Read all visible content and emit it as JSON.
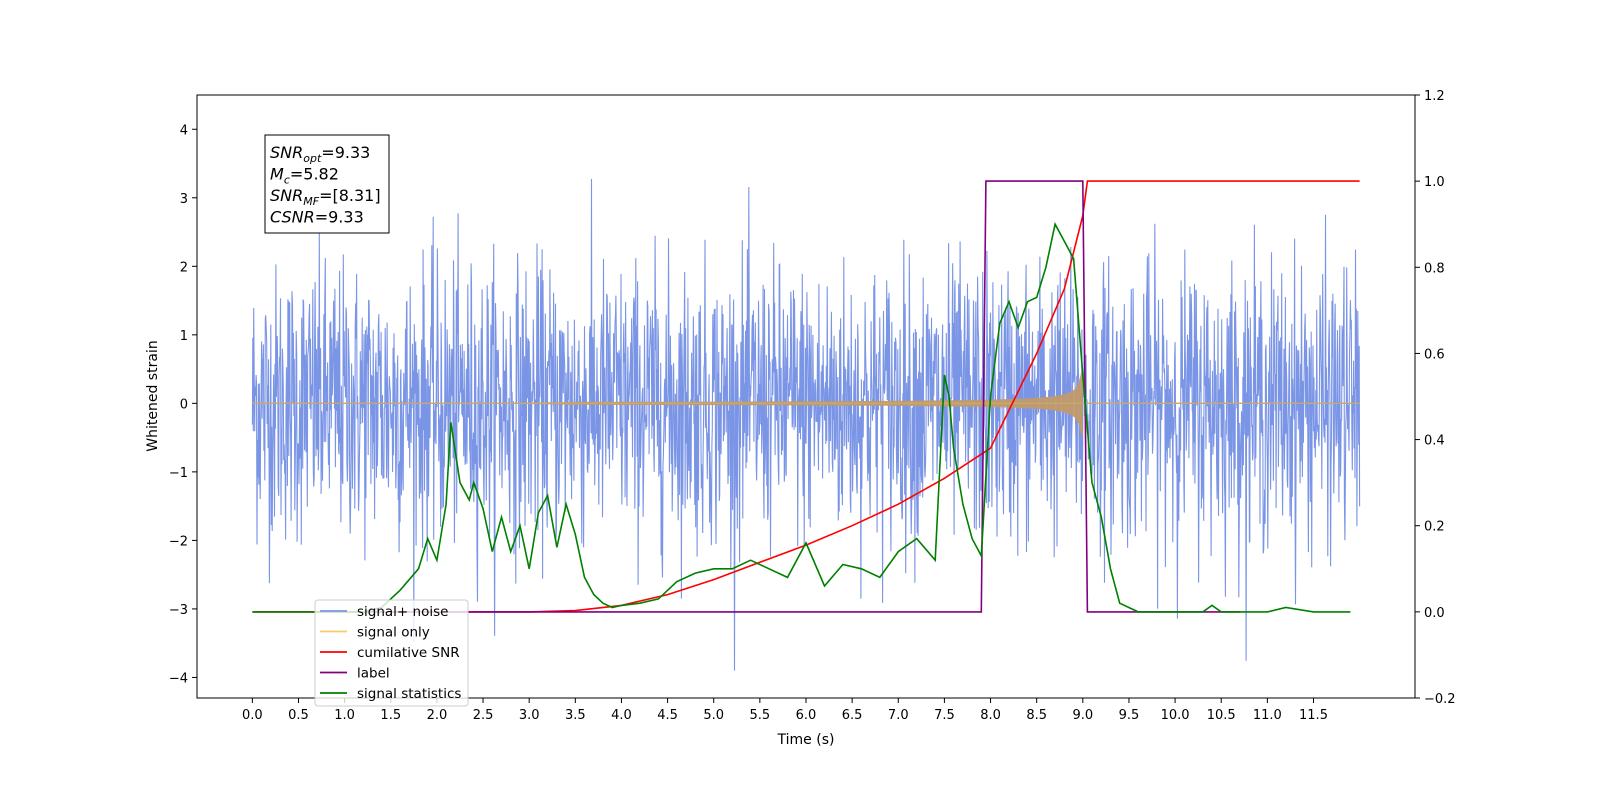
{
  "chart_data": {
    "type": "line",
    "title": "",
    "xlabel": "Time (s)",
    "ylabel": "Whitened strain",
    "y2label": "",
    "xlim": [
      -0.6,
      12.6
    ],
    "ylim": [
      -4.3,
      4.5
    ],
    "y2lim": [
      -0.2,
      1.2
    ],
    "x_ticks": [
      "0.0",
      "0.5",
      "1.0",
      "1.5",
      "2.0",
      "2.5",
      "3.0",
      "3.5",
      "4.0",
      "4.5",
      "5.0",
      "5.5",
      "6.0",
      "6.5",
      "7.0",
      "7.5",
      "8.0",
      "8.5",
      "9.0",
      "9.5",
      "10.0",
      "10.5",
      "11.0",
      "11.5"
    ],
    "y_ticks": [
      "4",
      "3",
      "2",
      "1",
      "0",
      "−1",
      "−2",
      "−3",
      "−4"
    ],
    "y2_ticks": [
      "1.2",
      "1.0",
      "0.8",
      "0.6",
      "0.4",
      "0.2",
      "0.0",
      "−0.2"
    ],
    "grid": false,
    "legend_position": "lower-left",
    "annotation_box": {
      "lines": [
        {
          "sym": "SNR",
          "sub": "opt",
          "value": "=9.33"
        },
        {
          "sym": "M",
          "sub": "c",
          "value": "=5.82"
        },
        {
          "sym": "SNR",
          "sub": "MF",
          "value": "=[8.31]"
        },
        {
          "sym": "CSNR",
          "sub": "",
          "value": "=9.33"
        }
      ]
    },
    "series": [
      {
        "name": "signal+ noise",
        "color": "#7b95e6",
        "axis": "left",
        "style": "noise",
        "x_range": [
          0.0,
          12.0
        ],
        "mean": 0,
        "std": 1.0
      },
      {
        "name": "signal only",
        "color": "#ffc66a",
        "axis": "left",
        "style": "chirp",
        "x_range": [
          0.0,
          9.0
        ],
        "peak_amplitude": 0.6
      },
      {
        "name": "cumilative SNR",
        "color": "#ff0000",
        "axis": "right",
        "x": [
          0.0,
          3.0,
          3.5,
          4.0,
          4.5,
          5.0,
          5.5,
          6.0,
          6.5,
          7.0,
          7.5,
          8.0,
          8.5,
          8.8,
          9.0,
          9.05,
          12.0
        ],
        "values": [
          0.0,
          0.0,
          0.003,
          0.015,
          0.04,
          0.075,
          0.115,
          0.155,
          0.2,
          0.25,
          0.31,
          0.38,
          0.6,
          0.75,
          0.92,
          1.0,
          1.0
        ]
      },
      {
        "name": "label",
        "color": "#800080",
        "axis": "right",
        "x": [
          0.7,
          7.9,
          7.95,
          9.0,
          9.05,
          10.7
        ],
        "values": [
          0.0,
          0.0,
          1.0,
          1.0,
          0.0,
          0.0
        ]
      },
      {
        "name": "signal statistics",
        "color": "#008000",
        "axis": "right",
        "x": [
          0.0,
          0.3,
          0.6,
          0.9,
          1.0,
          1.2,
          1.4,
          1.6,
          1.8,
          1.9,
          2.0,
          2.1,
          2.15,
          2.25,
          2.35,
          2.4,
          2.5,
          2.6,
          2.7,
          2.8,
          2.9,
          3.0,
          3.1,
          3.2,
          3.3,
          3.4,
          3.5,
          3.6,
          3.7,
          3.8,
          3.9,
          4.0,
          4.2,
          4.4,
          4.6,
          4.8,
          5.0,
          5.2,
          5.4,
          5.6,
          5.8,
          6.0,
          6.2,
          6.4,
          6.6,
          6.8,
          7.0,
          7.2,
          7.4,
          7.5,
          7.55,
          7.6,
          7.7,
          7.8,
          7.9,
          8.0,
          8.1,
          8.2,
          8.3,
          8.4,
          8.5,
          8.6,
          8.7,
          8.8,
          8.9,
          9.0,
          9.1,
          9.2,
          9.3,
          9.4,
          9.6,
          10.0,
          10.3,
          10.4,
          10.5,
          10.7,
          11.0,
          11.2,
          11.5,
          11.9
        ],
        "values": [
          0.0,
          0.0,
          0.0,
          0.0,
          0.0,
          0.0,
          0.01,
          0.05,
          0.1,
          0.17,
          0.12,
          0.25,
          0.44,
          0.3,
          0.26,
          0.3,
          0.24,
          0.14,
          0.22,
          0.14,
          0.2,
          0.1,
          0.23,
          0.27,
          0.15,
          0.25,
          0.18,
          0.08,
          0.04,
          0.02,
          0.01,
          0.015,
          0.02,
          0.03,
          0.07,
          0.09,
          0.1,
          0.1,
          0.12,
          0.1,
          0.08,
          0.16,
          0.06,
          0.11,
          0.1,
          0.08,
          0.14,
          0.17,
          0.12,
          0.55,
          0.5,
          0.38,
          0.25,
          0.17,
          0.13,
          0.5,
          0.67,
          0.72,
          0.66,
          0.72,
          0.73,
          0.8,
          0.9,
          0.86,
          0.82,
          0.55,
          0.3,
          0.22,
          0.1,
          0.02,
          0.0,
          0.0,
          0.0,
          0.015,
          0.0,
          0.0,
          0.0,
          0.01,
          0.0,
          0.0
        ]
      }
    ]
  }
}
